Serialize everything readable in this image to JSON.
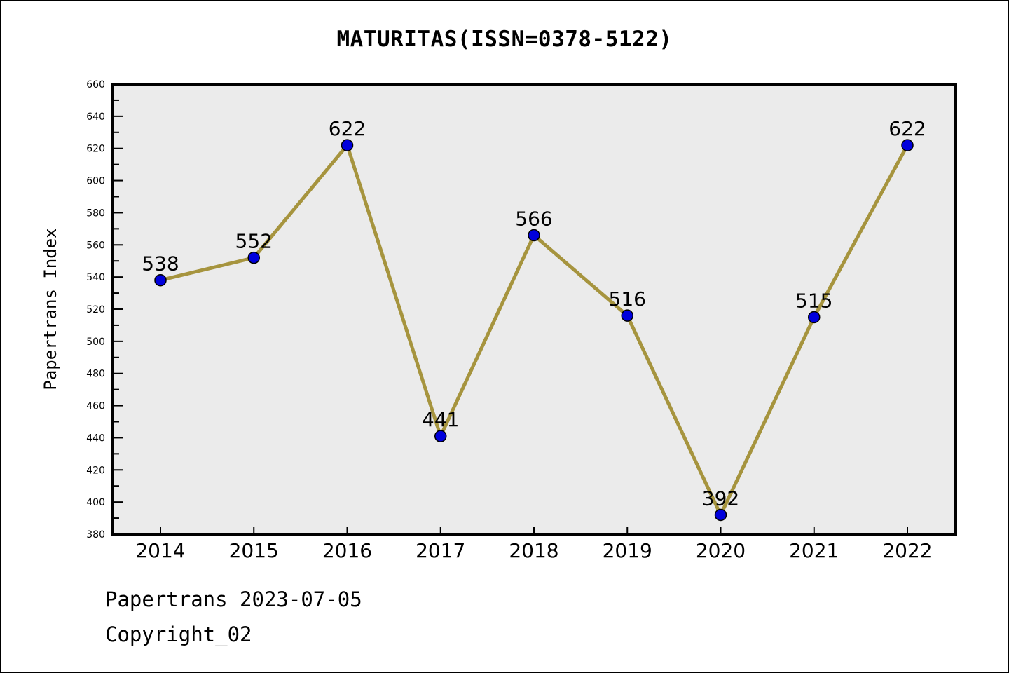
{
  "chart_data": {
    "type": "line",
    "title": "MATURITAS(ISSN=0378-5122)",
    "x": [
      2014,
      2015,
      2016,
      2017,
      2018,
      2019,
      2020,
      2021,
      2022
    ],
    "values": [
      538,
      552,
      622,
      441,
      566,
      516,
      392,
      515,
      622
    ],
    "point_labels": [
      "538",
      "552",
      "622",
      "441",
      "566",
      "516",
      "392",
      "515",
      "622"
    ],
    "xlabel": "",
    "ylabel": "Papertrans Index",
    "ylim": [
      380,
      660
    ],
    "ytick_step": 20,
    "ytick_minor_step": 10,
    "grid": false,
    "legend": null,
    "colors": {
      "line": "#A6943E",
      "marker": "#0000DC",
      "marker_edge": "#000000",
      "plot_bg": "#EBEBEB",
      "frame": "#000000",
      "text": "#000000"
    }
  },
  "footer": {
    "line1": "Papertrans 2023-07-05",
    "line2": "Copyright_02"
  }
}
